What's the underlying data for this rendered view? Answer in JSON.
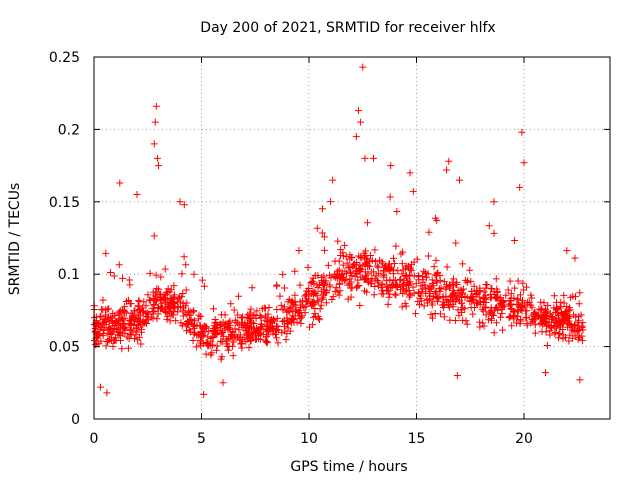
{
  "chart_data": {
    "type": "scatter",
    "title": "Day 200 of 2021, SRMTID for receiver hlfx",
    "xlabel": "GPS time / hours",
    "ylabel": "SRMTID / TECUs",
    "xlim": [
      0,
      24
    ],
    "ylim": [
      0,
      0.25
    ],
    "xticks": [
      0,
      5,
      10,
      15,
      20
    ],
    "yticks": [
      0,
      0.05,
      0.1,
      0.15,
      0.2,
      0.25
    ],
    "xtick_labels": [
      "0",
      "5",
      "10",
      "15",
      "20"
    ],
    "ytick_labels": [
      "0",
      "0.05",
      "0.1",
      "0.15",
      "0.2",
      "0.25"
    ],
    "grid": true,
    "marker": "+",
    "color": "#ff0000",
    "x_end": 22.75,
    "baseline_trend": [
      [
        0.0,
        0.066
      ],
      [
        1.0,
        0.064
      ],
      [
        2.0,
        0.068
      ],
      [
        3.0,
        0.082
      ],
      [
        4.0,
        0.078
      ],
      [
        5.0,
        0.058
      ],
      [
        6.0,
        0.058
      ],
      [
        7.0,
        0.06
      ],
      [
        8.0,
        0.064
      ],
      [
        9.0,
        0.07
      ],
      [
        10.0,
        0.082
      ],
      [
        11.0,
        0.095
      ],
      [
        12.0,
        0.1
      ],
      [
        13.0,
        0.1
      ],
      [
        14.0,
        0.095
      ],
      [
        15.0,
        0.092
      ],
      [
        16.0,
        0.088
      ],
      [
        17.0,
        0.085
      ],
      [
        18.0,
        0.083
      ],
      [
        19.0,
        0.078
      ],
      [
        20.0,
        0.078
      ],
      [
        21.0,
        0.07
      ],
      [
        22.0,
        0.068
      ],
      [
        22.75,
        0.06
      ]
    ],
    "peaks": [
      [
        2.9,
        0.216
      ],
      [
        2.85,
        0.205
      ],
      [
        2.95,
        0.18
      ],
      [
        3.0,
        0.175
      ],
      [
        2.8,
        0.19
      ],
      [
        1.2,
        0.163
      ],
      [
        2.0,
        0.155
      ],
      [
        4.0,
        0.15
      ],
      [
        4.2,
        0.148
      ],
      [
        12.5,
        0.243
      ],
      [
        12.3,
        0.213
      ],
      [
        12.4,
        0.205
      ],
      [
        12.2,
        0.195
      ],
      [
        12.6,
        0.18
      ],
      [
        11.1,
        0.165
      ],
      [
        13.0,
        0.18
      ],
      [
        13.8,
        0.175
      ],
      [
        14.7,
        0.17
      ],
      [
        16.5,
        0.178
      ],
      [
        16.4,
        0.172
      ],
      [
        17.0,
        0.165
      ],
      [
        18.6,
        0.15
      ],
      [
        19.9,
        0.198
      ],
      [
        20.0,
        0.177
      ],
      [
        19.8,
        0.16
      ],
      [
        0.3,
        0.022
      ],
      [
        0.6,
        0.018
      ],
      [
        5.1,
        0.017
      ],
      [
        6.0,
        0.025
      ],
      [
        16.9,
        0.03
      ],
      [
        21.0,
        0.032
      ],
      [
        22.6,
        0.027
      ]
    ]
  }
}
